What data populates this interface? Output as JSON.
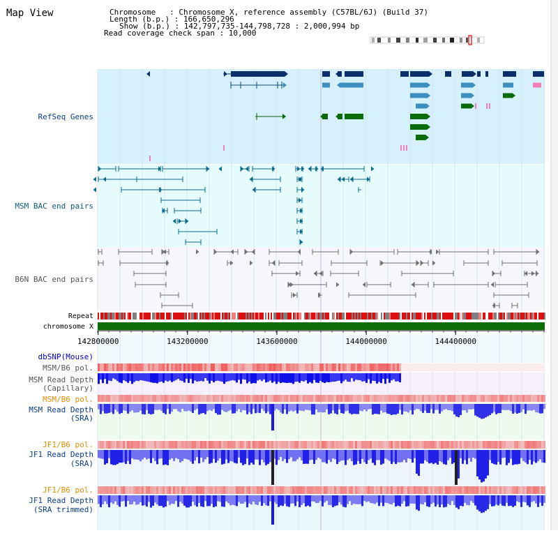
{
  "view_title": "Map View",
  "header": {
    "chromosome_line": "Chromosome   : Chromosome X, reference assembly (C57BL/6J) (Build 37)",
    "length_line": "Length (b.p.) : 166,650,296",
    "show_line": "Show (b.p.) : 142,797,735-144,798,728 : 2,000,994 bp",
    "coverage_line": "Read coverage check span : 10,000"
  },
  "tracks": {
    "refseq": "RefSeq Genes",
    "msm_bac": "MSM BAC end pairs",
    "b6n_bac": "B6N BAC end pairs",
    "repeat": "Repeat",
    "chromosome": "chromosome X",
    "dbsnp": "dbSNP(Mouse)",
    "msm_b6_pol": "MSM/B6 pol.",
    "msm_depth_cap_1": "MSM Read Depth",
    "msm_depth_cap_2": "(Capillary)",
    "msm_b6_pol_2": "MSM/B6 pol.",
    "msm_depth_sra_1": "MSM Read Depth",
    "msm_depth_sra_2": "(SRA)",
    "jf1_b6_pol": "JF1/B6 pol.",
    "jf1_depth_sra_1": "JF1 Read Depth",
    "jf1_depth_sra_2": "(SRA)",
    "jf1_b6_pol_2": "JF1/B6 pol.",
    "jf1_depth_trim_1": "JF1 Read Depth",
    "jf1_depth_trim_2": "(SRA trimmed)"
  },
  "axis": {
    "ticks": [
      {
        "label": "142800000",
        "value": 142800000
      },
      {
        "label": "143200000",
        "value": 143200000
      },
      {
        "label": "143600000",
        "value": 143600000
      },
      {
        "label": "144000000",
        "value": 144000000
      },
      {
        "label": "144400000",
        "value": 144400000
      }
    ]
  },
  "colors": {
    "refseq_bg": "#d6f1fc",
    "bac_bg": "#e6fbfb",
    "msm_color": "#0b6b8f",
    "b6n_color": "#707070",
    "gene_dark": "#0c2e6b",
    "gene_mid": "#3d8fbf",
    "gene_green": "#0a6b0a",
    "chromosome_green": "#0b6e0b",
    "depth_blue": "#1010e8",
    "pol_red": "#e83030"
  }
}
